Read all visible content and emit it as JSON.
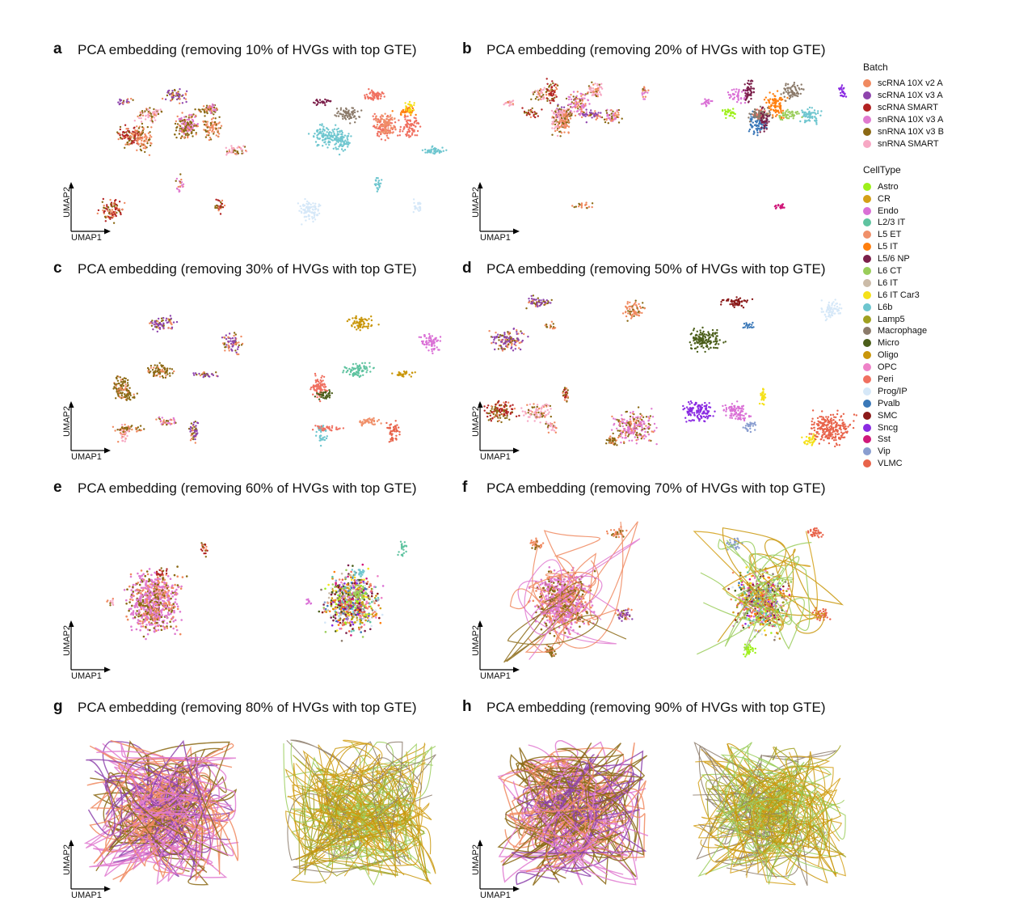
{
  "figure": {
    "axis_x_label": "UMAP1",
    "axis_y_label": "UMAP2"
  },
  "panels": [
    {
      "letter": "a",
      "title": "PCA embedding (removing 10% of HVGs with top GTE)"
    },
    {
      "letter": "b",
      "title": "PCA embedding (removing 20% of HVGs with top GTE)"
    },
    {
      "letter": "c",
      "title": "PCA embedding (removing 30% of HVGs with top GTE)"
    },
    {
      "letter": "d",
      "title": "PCA embedding (removing 50% of HVGs with top GTE)"
    },
    {
      "letter": "e",
      "title": "PCA embedding (removing 60% of HVGs with top GTE)"
    },
    {
      "letter": "f",
      "title": "PCA embedding (removing 70% of HVGs with top GTE)"
    },
    {
      "letter": "g",
      "title": "PCA embedding (removing 80% of HVGs with top GTE)"
    },
    {
      "letter": "h",
      "title": "PCA embedding (removing 90% of HVGs with top GTE)"
    }
  ],
  "legend": {
    "batch_title": "Batch",
    "batch": [
      {
        "label": "scRNA 10X v2 A",
        "color": "#f08a60"
      },
      {
        "label": "scRNA 10X v3 A",
        "color": "#8e44ad"
      },
      {
        "label": "scRNA SMART",
        "color": "#b22222"
      },
      {
        "label": "snRNA 10X v3 A",
        "color": "#e07ad0"
      },
      {
        "label": "snRNA 10X v3 B",
        "color": "#8b6914"
      },
      {
        "label": "snRNA SMART",
        "color": "#f7a8c4"
      }
    ],
    "celltype_title": "CellType",
    "celltype": [
      {
        "label": "Astro",
        "color": "#9ef01a"
      },
      {
        "label": "CR",
        "color": "#d4a017"
      },
      {
        "label": "Endo",
        "color": "#da70d6"
      },
      {
        "label": "L2/3 IT",
        "color": "#5fc3a0"
      },
      {
        "label": "L5 ET",
        "color": "#f0906a"
      },
      {
        "label": "L5 IT",
        "color": "#ff7f0e"
      },
      {
        "label": "L5/6 NP",
        "color": "#7b1f4a"
      },
      {
        "label": "L6 CT",
        "color": "#9acd5a"
      },
      {
        "label": "L6 IT",
        "color": "#cbbba8"
      },
      {
        "label": "L6 IT Car3",
        "color": "#f5e11a"
      },
      {
        "label": "L6b",
        "color": "#6ec6cf"
      },
      {
        "label": "Lamp5",
        "color": "#a0a020"
      },
      {
        "label": "Macrophage",
        "color": "#8c7b6b"
      },
      {
        "label": "Micro",
        "color": "#4b5e1a"
      },
      {
        "label": "Oligo",
        "color": "#c9960a"
      },
      {
        "label": "OPC",
        "color": "#ee82c8"
      },
      {
        "label": "Peri",
        "color": "#f07060"
      },
      {
        "label": "Prog/IP",
        "color": "#d6e8f8"
      },
      {
        "label": "Pvalb",
        "color": "#3a78b8"
      },
      {
        "label": "SMC",
        "color": "#8b1a1a"
      },
      {
        "label": "Sncg",
        "color": "#8a2be2"
      },
      {
        "label": "Sst",
        "color": "#d0187a"
      },
      {
        "label": "Vip",
        "color": "#8a9ed0"
      },
      {
        "label": "VLMC",
        "color": "#e8634a"
      }
    ]
  },
  "chart_data": [
    {
      "type": "scatter",
      "panel": "a",
      "title": "PCA embedding (removing 10% of HVGs with top GTE)",
      "xlabel": "UMAP1",
      "ylabel": "UMAP2",
      "views": [
        "Batch",
        "CellType"
      ],
      "structure": "many distinct clusters"
    },
    {
      "type": "scatter",
      "panel": "b",
      "title": "PCA embedding (removing 20% of HVGs with top GTE)",
      "xlabel": "UMAP1",
      "ylabel": "UMAP2",
      "views": [
        "Batch",
        "CellType"
      ],
      "structure": "distinct clusters"
    },
    {
      "type": "scatter",
      "panel": "c",
      "title": "PCA embedding (removing 30% of HVGs with top GTE)",
      "xlabel": "UMAP1",
      "ylabel": "UMAP2",
      "views": [
        "Batch",
        "CellType"
      ],
      "structure": "distinct clusters"
    },
    {
      "type": "scatter",
      "panel": "d",
      "title": "PCA embedding (removing 50% of HVGs with top GTE)",
      "xlabel": "UMAP1",
      "ylabel": "UMAP2",
      "views": [
        "Batch",
        "CellType"
      ],
      "structure": "partially merged clusters"
    },
    {
      "type": "scatter",
      "panel": "e",
      "title": "PCA embedding (removing 60% of HVGs with top GTE)",
      "xlabel": "UMAP1",
      "ylabel": "UMAP2",
      "views": [
        "Batch",
        "CellType"
      ],
      "structure": "one large merged blob"
    },
    {
      "type": "scatter",
      "panel": "f",
      "title": "PCA embedding (removing 70% of HVGs with top GTE)",
      "xlabel": "UMAP1",
      "ylabel": "UMAP2",
      "views": [
        "Batch",
        "CellType"
      ],
      "structure": "merged blob with curve artifacts"
    },
    {
      "type": "scatter",
      "panel": "g",
      "title": "PCA embedding (removing 80% of HVGs with top GTE)",
      "xlabel": "UMAP1",
      "ylabel": "UMAP2",
      "views": [
        "Batch",
        "CellType"
      ],
      "structure": "tangled curves"
    },
    {
      "type": "scatter",
      "panel": "h",
      "title": "PCA embedding (removing 90% of HVGs with top GTE)",
      "xlabel": "UMAP1",
      "ylabel": "UMAP2",
      "views": [
        "Batch",
        "CellType"
      ],
      "structure": "tangled curves"
    }
  ]
}
